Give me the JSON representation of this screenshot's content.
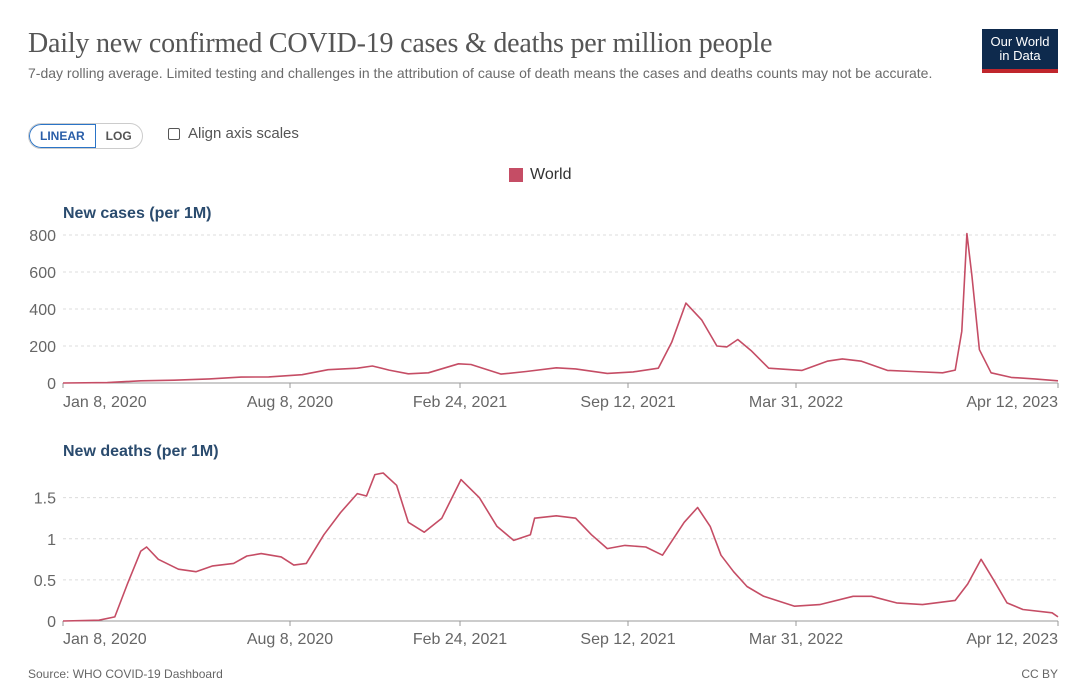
{
  "header": {
    "title": "Daily new confirmed COVID-19 cases & deaths per million people",
    "subtitle": "7-day rolling average. Limited testing and challenges in the attribution of cause of death means the cases and deaths counts may not be accurate.",
    "logo_line1": "Our World",
    "logo_line2": "in Data"
  },
  "controls": {
    "linear_label": "LINEAR",
    "log_label": "LOG",
    "align_label": "Align axis scales"
  },
  "legend": {
    "label": "World",
    "color": "#c54d65"
  },
  "footer": {
    "source": "Source: WHO COVID-19 Dashboard",
    "license": "CC BY"
  },
  "chart_data": [
    {
      "type": "line",
      "title": "New cases (per 1M)",
      "series_name": "World",
      "color": "#c54d65",
      "x_ticks": [
        "Jan 8, 2020",
        "Aug 8, 2020",
        "Feb 24, 2021",
        "Sep 12, 2021",
        "Mar 31, 2022",
        "Apr 12, 2023"
      ],
      "y_ticks": [
        0,
        200,
        400,
        600,
        800
      ],
      "ylim": [
        0,
        800
      ],
      "x_range": [
        "2020-01-08",
        "2023-04-12"
      ],
      "grid": true,
      "points": [
        [
          "2020-01-08",
          0
        ],
        [
          "2020-03-01",
          2
        ],
        [
          "2020-04-10",
          12
        ],
        [
          "2020-05-20",
          15
        ],
        [
          "2020-07-01",
          22
        ],
        [
          "2020-08-08",
          32
        ],
        [
          "2020-09-10",
          33
        ],
        [
          "2020-10-20",
          45
        ],
        [
          "2020-11-20",
          72
        ],
        [
          "2020-12-25",
          80
        ],
        [
          "2021-01-12",
          92
        ],
        [
          "2021-02-01",
          70
        ],
        [
          "2021-02-24",
          50
        ],
        [
          "2021-03-20",
          55
        ],
        [
          "2021-04-25",
          104
        ],
        [
          "2021-05-10",
          100
        ],
        [
          "2021-06-15",
          48
        ],
        [
          "2021-07-15",
          62
        ],
        [
          "2021-08-20",
          82
        ],
        [
          "2021-09-12",
          76
        ],
        [
          "2021-10-20",
          52
        ],
        [
          "2021-11-20",
          60
        ],
        [
          "2021-12-20",
          80
        ],
        [
          "2022-01-05",
          220
        ],
        [
          "2022-01-22",
          432
        ],
        [
          "2022-02-10",
          340
        ],
        [
          "2022-02-28",
          200
        ],
        [
          "2022-03-12",
          195
        ],
        [
          "2022-03-25",
          235
        ],
        [
          "2022-04-10",
          175
        ],
        [
          "2022-05-01",
          80
        ],
        [
          "2022-06-10",
          68
        ],
        [
          "2022-07-10",
          118
        ],
        [
          "2022-07-28",
          130
        ],
        [
          "2022-08-20",
          118
        ],
        [
          "2022-09-20",
          68
        ],
        [
          "2022-10-20",
          62
        ],
        [
          "2022-11-25",
          55
        ],
        [
          "2022-12-10",
          70
        ],
        [
          "2022-12-18",
          280
        ],
        [
          "2022-12-24",
          808
        ],
        [
          "2022-12-30",
          580
        ],
        [
          "2023-01-08",
          180
        ],
        [
          "2023-01-22",
          55
        ],
        [
          "2023-02-15",
          30
        ],
        [
          "2023-03-15",
          22
        ],
        [
          "2023-04-12",
          12
        ]
      ]
    },
    {
      "type": "line",
      "title": "New deaths (per 1M)",
      "series_name": "World",
      "color": "#c54d65",
      "x_ticks": [
        "Jan 8, 2020",
        "Aug 8, 2020",
        "Feb 24, 2021",
        "Sep 12, 2021",
        "Mar 31, 2022",
        "Apr 12, 2023"
      ],
      "y_ticks": [
        0,
        0.5,
        1,
        1.5
      ],
      "ylim": [
        0,
        1.8
      ],
      "x_range": [
        "2020-01-08",
        "2023-04-12"
      ],
      "grid": true,
      "points": [
        [
          "2020-01-08",
          0
        ],
        [
          "2020-02-20",
          0.01
        ],
        [
          "2020-03-10",
          0.05
        ],
        [
          "2020-03-25",
          0.45
        ],
        [
          "2020-04-10",
          0.85
        ],
        [
          "2020-04-17",
          0.9
        ],
        [
          "2020-05-01",
          0.75
        ],
        [
          "2020-05-25",
          0.63
        ],
        [
          "2020-06-15",
          0.6
        ],
        [
          "2020-07-05",
          0.67
        ],
        [
          "2020-07-30",
          0.7
        ],
        [
          "2020-08-15",
          0.79
        ],
        [
          "2020-09-01",
          0.82
        ],
        [
          "2020-09-25",
          0.78
        ],
        [
          "2020-10-10",
          0.68
        ],
        [
          "2020-10-25",
          0.7
        ],
        [
          "2020-11-15",
          1.05
        ],
        [
          "2020-12-05",
          1.32
        ],
        [
          "2020-12-25",
          1.55
        ],
        [
          "2021-01-05",
          1.52
        ],
        [
          "2021-01-15",
          1.78
        ],
        [
          "2021-01-25",
          1.8
        ],
        [
          "2021-02-10",
          1.65
        ],
        [
          "2021-02-24",
          1.2
        ],
        [
          "2021-03-15",
          1.08
        ],
        [
          "2021-04-05",
          1.25
        ],
        [
          "2021-04-28",
          1.72
        ],
        [
          "2021-05-20",
          1.5
        ],
        [
          "2021-06-10",
          1.15
        ],
        [
          "2021-06-30",
          0.98
        ],
        [
          "2021-07-20",
          1.05
        ],
        [
          "2021-07-25",
          1.25
        ],
        [
          "2021-08-20",
          1.28
        ],
        [
          "2021-09-12",
          1.25
        ],
        [
          "2021-10-01",
          1.05
        ],
        [
          "2021-10-20",
          0.88
        ],
        [
          "2021-11-10",
          0.92
        ],
        [
          "2021-12-05",
          0.9
        ],
        [
          "2021-12-25",
          0.8
        ],
        [
          "2022-01-20",
          1.2
        ],
        [
          "2022-02-05",
          1.38
        ],
        [
          "2022-02-20",
          1.15
        ],
        [
          "2022-03-05",
          0.8
        ],
        [
          "2022-03-20",
          0.6
        ],
        [
          "2022-04-05",
          0.42
        ],
        [
          "2022-04-25",
          0.3
        ],
        [
          "2022-06-01",
          0.18
        ],
        [
          "2022-07-01",
          0.2
        ],
        [
          "2022-08-10",
          0.3
        ],
        [
          "2022-09-01",
          0.3
        ],
        [
          "2022-10-01",
          0.22
        ],
        [
          "2022-11-01",
          0.2
        ],
        [
          "2022-12-10",
          0.25
        ],
        [
          "2022-12-25",
          0.45
        ],
        [
          "2023-01-10",
          0.75
        ],
        [
          "2023-01-25",
          0.5
        ],
        [
          "2023-02-10",
          0.22
        ],
        [
          "2023-03-01",
          0.14
        ],
        [
          "2023-04-05",
          0.1
        ],
        [
          "2023-04-12",
          0.05
        ]
      ]
    }
  ]
}
